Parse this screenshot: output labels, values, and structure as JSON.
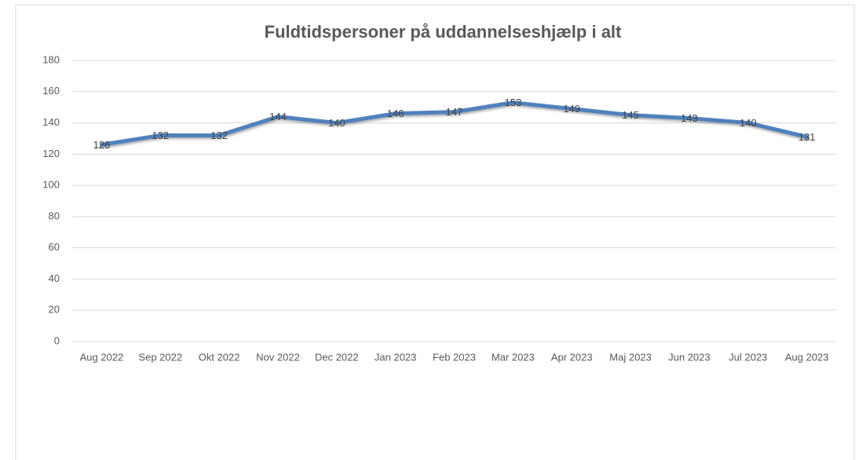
{
  "chart_data": {
    "type": "line",
    "title": "Fuldtidspersoner på uddannelseshjælp i alt",
    "categories": [
      "Aug 2022",
      "Sep 2022",
      "Okt 2022",
      "Nov 2022",
      "Dec 2022",
      "Jan 2023",
      "Feb 2023",
      "Mar 2023",
      "Apr 2023",
      "Maj 2023",
      "Jun 2023",
      "Jul 2023",
      "Aug 2023"
    ],
    "series": [
      {
        "name": "Fuldtidspersoner på uddannelseshjælp i alt",
        "color": "#4f81bd",
        "values": [
          126,
          132,
          132,
          144,
          140,
          146,
          147,
          153,
          149,
          145,
          143,
          140,
          131
        ]
      }
    ],
    "ylim": [
      0,
      180
    ],
    "yticks": [
      0,
      20,
      40,
      60,
      80,
      100,
      120,
      140,
      160,
      180
    ],
    "grid": true
  }
}
